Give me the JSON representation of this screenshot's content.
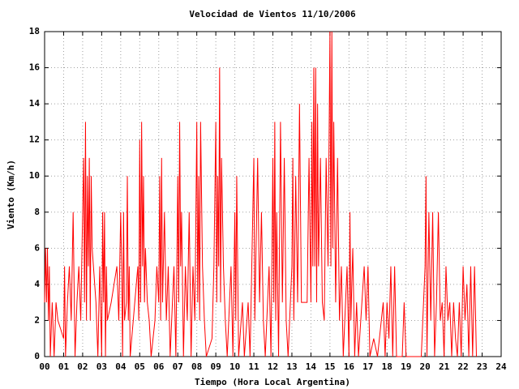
{
  "chart_data": {
    "type": "line",
    "title": "Velocidad de Vientos 11/10/2006",
    "x_label": "Tiempo (Hora Local Argentina)",
    "y_label": "Viento (Km/h)",
    "xlim": [
      0,
      24
    ],
    "ylim": [
      0,
      18
    ],
    "xticks": [
      {
        "value": 0,
        "label": "00"
      },
      {
        "value": 1,
        "label": "01"
      },
      {
        "value": 2,
        "label": "02"
      },
      {
        "value": 3,
        "label": "03"
      },
      {
        "value": 4,
        "label": "04"
      },
      {
        "value": 5,
        "label": "05"
      },
      {
        "value": 6,
        "label": "06"
      },
      {
        "value": 7,
        "label": "07"
      },
      {
        "value": 8,
        "label": "08"
      },
      {
        "value": 9,
        "label": "09"
      },
      10,
      11,
      12,
      13,
      14,
      15,
      16,
      17,
      18,
      19,
      20,
      21,
      22,
      23,
      24
    ],
    "yticks": [
      0,
      2,
      4,
      6,
      8,
      10,
      12,
      14,
      16,
      18
    ],
    "grid": true,
    "color": "#ff0000",
    "x": [
      0,
      0.05,
      0.1,
      0.15,
      0.2,
      0.25,
      0.3,
      0.4,
      0.5,
      0.6,
      0.7,
      1,
      1.05,
      1.1,
      1.2,
      1.3,
      1.4,
      1.5,
      1.6,
      1.7,
      1.8,
      1.9,
      2,
      2.05,
      2.1,
      2.15,
      2.2,
      2.25,
      2.3,
      2.35,
      2.4,
      2.45,
      2.5,
      2.7,
      2.8,
      2.9,
      3,
      3.05,
      3.1,
      3.15,
      3.2,
      3.25,
      3.3,
      3.5,
      3.8,
      3.9,
      4,
      4.05,
      4.1,
      4.15,
      4.2,
      4.3,
      4.35,
      4.4,
      4.45,
      4.5,
      4.9,
      4.95,
      5,
      5.05,
      5.1,
      5.15,
      5.2,
      5.25,
      5.3,
      5.4,
      5.5,
      5.6,
      5.8,
      5.9,
      6,
      6.05,
      6.1,
      6.15,
      6.2,
      6.3,
      6.4,
      6.5,
      6.6,
      6.8,
      6.9,
      7,
      7.05,
      7.1,
      7.15,
      7.2,
      7.3,
      7.4,
      7.5,
      7.6,
      7.7,
      7.8,
      7.9,
      8,
      8.05,
      8.1,
      8.15,
      8.2,
      8.3,
      8.4,
      8.5,
      8.8,
      8.9,
      9,
      9.05,
      9.1,
      9.15,
      9.2,
      9.25,
      9.3,
      9.4,
      9.5,
      9.6,
      9.8,
      9.9,
      10,
      10.05,
      10.1,
      10.2,
      10.4,
      10.5,
      10.7,
      10.8,
      11,
      11.05,
      11.1,
      11.2,
      11.3,
      11.4,
      11.5,
      11.6,
      11.8,
      11.9,
      12,
      12.05,
      12.1,
      12.15,
      12.2,
      12.3,
      12.4,
      12.5,
      12.6,
      12.7,
      12.8,
      13,
      13.05,
      13.1,
      13.2,
      13.3,
      13.4,
      13.5,
      13.8,
      13.9,
      14,
      14.05,
      14.1,
      14.15,
      14.2,
      14.25,
      14.3,
      14.35,
      14.4,
      14.5,
      14.6,
      14.7,
      14.8,
      14.9,
      15,
      15.05,
      15.1,
      15.15,
      15.2,
      15.3,
      15.4,
      15.5,
      15.6,
      15.7,
      15.9,
      16,
      16.05,
      16.1,
      16.2,
      16.3,
      16.4,
      16.5,
      16.8,
      16.9,
      17,
      17.1,
      17.3,
      17.5,
      17.8,
      17.9,
      18,
      18.1,
      18.2,
      18.3,
      18.4,
      18.5,
      18.8,
      18.9,
      19,
      19.8,
      20,
      20.05,
      20.1,
      20.2,
      20.3,
      20.4,
      20.5,
      20.6,
      20.7,
      20.8,
      20.9,
      21,
      21.1,
      21.2,
      21.3,
      21.4,
      21.5,
      21.6,
      21.7,
      21.8,
      21.9,
      22,
      22.1,
      22.2,
      22.3,
      22.4,
      22.5,
      22.6,
      22.7
    ],
    "values": [
      3,
      6,
      3,
      6,
      2,
      5,
      0,
      3,
      0,
      3,
      2,
      1,
      5,
      0,
      3,
      5,
      2,
      8,
      0,
      3,
      5,
      2,
      8,
      11,
      3,
      13,
      2,
      10,
      5,
      11,
      2,
      10,
      6,
      3,
      0,
      5,
      0,
      8,
      3,
      8,
      0,
      5,
      2,
      3,
      5,
      2,
      8,
      5,
      0,
      8,
      2,
      3,
      10,
      2,
      5,
      0,
      5,
      2,
      12,
      3,
      13,
      5,
      10,
      3,
      6,
      3,
      2,
      0,
      2,
      5,
      3,
      10,
      2,
      11,
      3,
      8,
      2,
      5,
      0,
      5,
      0,
      10,
      3,
      13,
      5,
      8,
      0,
      5,
      2,
      8,
      0,
      5,
      2,
      13,
      3,
      10,
      2,
      13,
      5,
      2,
      0,
      1,
      5,
      13,
      3,
      10,
      5,
      16,
      3,
      11,
      5,
      2,
      0,
      5,
      0,
      8,
      2,
      10,
      0,
      3,
      0,
      3,
      0,
      11,
      2,
      5,
      11,
      3,
      8,
      2,
      0,
      5,
      0,
      11,
      3,
      13,
      2,
      8,
      0,
      13,
      3,
      11,
      2,
      0,
      5,
      11,
      2,
      10,
      3,
      14,
      3,
      3,
      11,
      3,
      13,
      5,
      16,
      5,
      16,
      3,
      14,
      5,
      11,
      3,
      2,
      11,
      5,
      18,
      5,
      18,
      6,
      13,
      3,
      11,
      2,
      5,
      0,
      5,
      0,
      8,
      2,
      6,
      0,
      3,
      0,
      5,
      2,
      5,
      0,
      1,
      0,
      3,
      0,
      3,
      1,
      5,
      0,
      5,
      0,
      0,
      3,
      0,
      0,
      5,
      10,
      0,
      8,
      2,
      8,
      0,
      3,
      8,
      2,
      3,
      0,
      5,
      2,
      3,
      0,
      3,
      1,
      0,
      3,
      0,
      5,
      2,
      4,
      0,
      5,
      0,
      5,
      0
    ]
  }
}
